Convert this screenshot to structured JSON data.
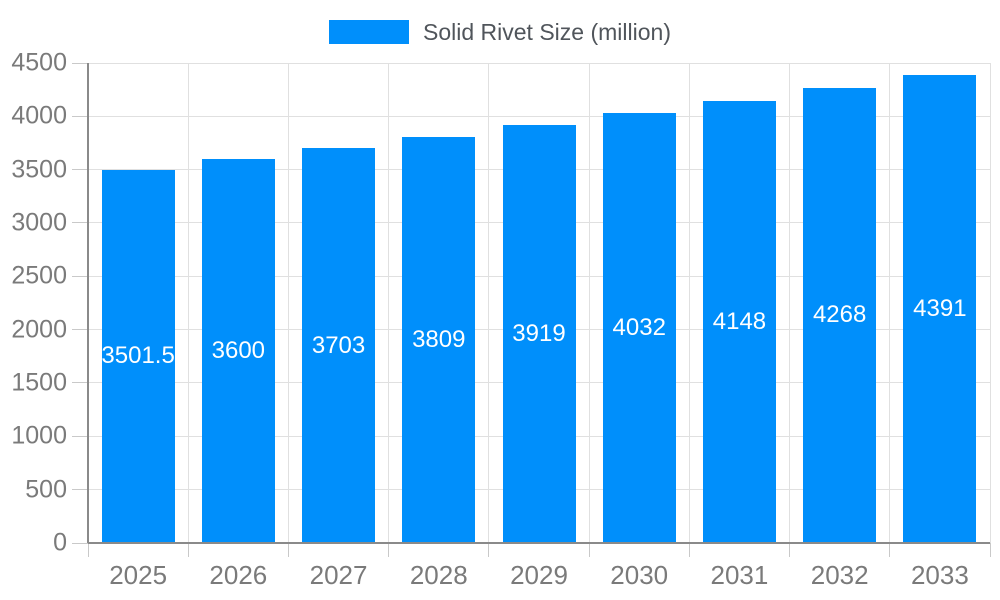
{
  "chart_data": {
    "type": "bar",
    "title": "",
    "legend": "Solid Rivet Size (million)",
    "legend_position": "top-center",
    "categories": [
      "2025",
      "2026",
      "2027",
      "2028",
      "2029",
      "2030",
      "2031",
      "2032",
      "2033"
    ],
    "series": [
      {
        "name": "Solid Rivet Size (million)",
        "values": [
          3501.5,
          3600,
          3703,
          3809,
          3919,
          4032,
          4148,
          4268,
          4391
        ]
      }
    ],
    "bar_value_labels": [
      "3501.5",
      "3600",
      "3703",
      "3809",
      "3919",
      "4032",
      "4148",
      "4268",
      "4391"
    ],
    "xlabel": "",
    "ylabel": "",
    "ylim": [
      0,
      4500
    ],
    "y_ticks": [
      0,
      500,
      1000,
      1500,
      2000,
      2500,
      3000,
      3500,
      4000,
      4500
    ],
    "grid": true,
    "colors": {
      "bar": "#008ffb",
      "bar_label": "#ffffff",
      "axis_label": "#7a7a7a",
      "legend_text": "#50555b",
      "gridline": "#e0e0e0",
      "axis_line": "#8a8a8a",
      "tick": "#c9c9c9",
      "background": "#ffffff"
    }
  }
}
